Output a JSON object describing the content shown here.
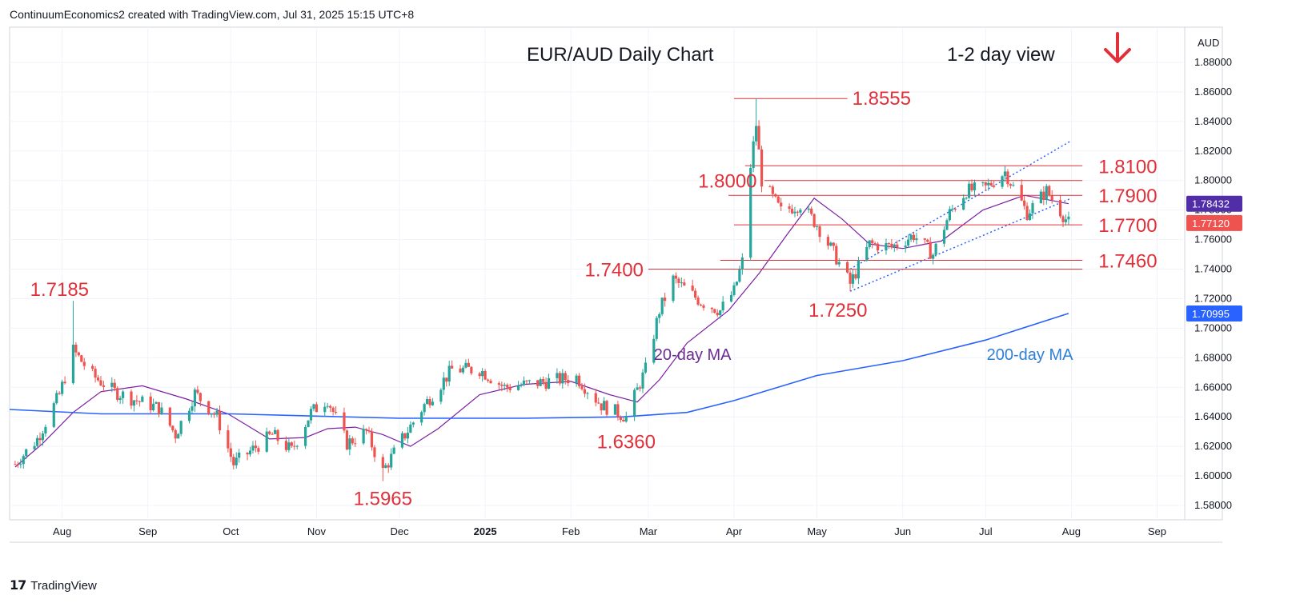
{
  "header": {
    "text": "ContinuumEconomics2 created with TradingView.com, Jul 31, 2025 15:15 UTC+8"
  },
  "footer": {
    "brand": "TradingView"
  },
  "chart_data": {
    "type": "candlestick",
    "title": "EUR/AUD Daily Chart",
    "subtitle": "1-2 day view",
    "outlook_arrow": "down-arrow-icon",
    "currency": "AUD",
    "ylim": [
      1.57,
      1.9
    ],
    "y_ticks": [
      "1.88000",
      "1.86000",
      "1.84000",
      "1.82000",
      "1.80000",
      "1.78000",
      "1.76000",
      "1.74000",
      "1.72000",
      "1.70000",
      "1.68000",
      "1.66000",
      "1.64000",
      "1.62000",
      "1.60000",
      "1.58000"
    ],
    "x_ticks": [
      {
        "label": "Aug",
        "x": "2024-08-01"
      },
      {
        "label": "Sep",
        "x": "2024-09-01"
      },
      {
        "label": "Oct",
        "x": "2024-10-01"
      },
      {
        "label": "Nov",
        "x": "2024-11-01"
      },
      {
        "label": "Dec",
        "x": "2024-12-01"
      },
      {
        "label": "2025",
        "x": "2025-01-01",
        "bold": true
      },
      {
        "label": "Feb",
        "x": "2025-02-01"
      },
      {
        "label": "Mar",
        "x": "2025-03-01"
      },
      {
        "label": "Apr",
        "x": "2025-04-01"
      },
      {
        "label": "May",
        "x": "2025-05-01"
      },
      {
        "label": "Jun",
        "x": "2025-06-01"
      },
      {
        "label": "Jul",
        "x": "2025-07-01"
      },
      {
        "label": "Aug",
        "x": "2025-08-01"
      },
      {
        "label": "Sep",
        "x": "2025-09-01"
      }
    ],
    "x_range": [
      "2024-07-13",
      "2025-09-11"
    ],
    "price_anchors": [
      [
        "2024-07-15",
        1.608
      ],
      [
        "2024-07-23",
        1.625
      ],
      [
        "2024-07-31",
        1.655
      ],
      [
        "2024-08-05",
        1.685
      ],
      [
        "2024-08-12",
        1.668
      ],
      [
        "2024-08-20",
        1.657
      ],
      [
        "2024-08-28",
        1.651
      ],
      [
        "2024-09-05",
        1.646
      ],
      [
        "2024-09-11",
        1.628
      ],
      [
        "2024-09-18",
        1.656
      ],
      [
        "2024-09-26",
        1.64
      ],
      [
        "2024-10-02",
        1.608
      ],
      [
        "2024-10-09",
        1.618
      ],
      [
        "2024-10-16",
        1.628
      ],
      [
        "2024-10-23",
        1.617
      ],
      [
        "2024-10-30",
        1.643
      ],
      [
        "2024-11-05",
        1.652
      ],
      [
        "2024-11-12",
        1.622
      ],
      [
        "2024-11-19",
        1.63
      ],
      [
        "2024-11-25",
        1.603
      ],
      [
        "2024-12-02",
        1.625
      ],
      [
        "2024-12-10",
        1.648
      ],
      [
        "2024-12-20",
        1.672
      ],
      [
        "2024-12-30",
        1.672
      ],
      [
        "2025-01-08",
        1.66
      ],
      [
        "2025-01-20",
        1.663
      ],
      [
        "2025-02-03",
        1.667
      ],
      [
        "2025-02-12",
        1.648
      ],
      [
        "2025-02-21",
        1.64
      ],
      [
        "2025-02-28",
        1.672
      ],
      [
        "2025-03-05",
        1.712
      ],
      [
        "2025-03-10",
        1.733
      ],
      [
        "2025-03-20",
        1.718
      ],
      [
        "2025-03-27",
        1.712
      ],
      [
        "2025-04-01",
        1.725
      ],
      [
        "2025-04-04",
        1.745
      ],
      [
        "2025-04-07",
        1.81
      ],
      [
        "2025-04-09",
        1.838
      ],
      [
        "2025-04-11",
        1.8
      ],
      [
        "2025-04-18",
        1.779
      ],
      [
        "2025-04-25",
        1.784
      ],
      [
        "2025-05-01",
        1.77
      ],
      [
        "2025-05-07",
        1.751
      ],
      [
        "2025-05-13",
        1.73
      ],
      [
        "2025-05-20",
        1.757
      ],
      [
        "2025-05-28",
        1.755
      ],
      [
        "2025-06-05",
        1.763
      ],
      [
        "2025-06-12",
        1.75
      ],
      [
        "2025-06-18",
        1.778
      ],
      [
        "2025-06-24",
        1.793
      ],
      [
        "2025-07-01",
        1.795
      ],
      [
        "2025-07-08",
        1.806
      ],
      [
        "2025-07-16",
        1.778
      ],
      [
        "2025-07-23",
        1.793
      ],
      [
        "2025-07-31",
        1.7712
      ]
    ],
    "key_candles": [
      {
        "x": "2024-08-05",
        "label": "1.7185",
        "price": 1.7185,
        "kind": "high"
      },
      {
        "x": "2024-11-25",
        "label": "1.5965",
        "price": 1.5965,
        "kind": "low"
      },
      {
        "x": "2025-02-21",
        "label": "1.6360",
        "price": 1.636,
        "kind": "low"
      },
      {
        "x": "2025-04-09",
        "label": "1.8555",
        "price": 1.8555,
        "kind": "high"
      },
      {
        "x": "2025-05-13",
        "label": "1.7250",
        "price": 1.725,
        "kind": "low"
      }
    ],
    "levels": [
      {
        "label": "1.8555",
        "price": 1.8555,
        "from": "2025-04-01",
        "to": "2025-05-12",
        "label_side": "right-of-line"
      },
      {
        "label": "1.8100",
        "price": 1.81,
        "from": "2025-04-05",
        "to": "2025-08-05",
        "label_side": "right"
      },
      {
        "label": "1.8000",
        "price": 1.8,
        "from": "2025-04-12",
        "to": "2025-08-05",
        "label_side": "left"
      },
      {
        "label": "1.7900",
        "price": 1.79,
        "from": "2025-03-30",
        "to": "2025-08-05",
        "label_side": "right"
      },
      {
        "label": "1.7700",
        "price": 1.77,
        "from": "2025-04-01",
        "to": "2025-08-05",
        "label_side": "right"
      },
      {
        "label": "1.7460",
        "price": 1.746,
        "from": "2025-03-27",
        "to": "2025-08-05",
        "label_side": "right"
      },
      {
        "label": "1.7400",
        "price": 1.74,
        "from": "2025-03-01",
        "to": "2025-08-05",
        "label_side": "left"
      }
    ],
    "text_labels": [
      {
        "text": "1.7185",
        "x": "2024-08-01",
        "price": 1.7185
      },
      {
        "text": "1.5965",
        "x": "2024-11-25",
        "price": 1.5965
      },
      {
        "text": "1.6360",
        "x": "2025-02-21",
        "price": 1.636
      },
      {
        "text": "1.8555",
        "x": "2025-05-12",
        "price": 1.8555
      },
      {
        "text": "1.8000",
        "x": "2025-04-11",
        "price": 1.8
      },
      {
        "text": "1.7400",
        "x": "2025-03-01",
        "price": 1.74
      },
      {
        "text": "1.7250",
        "x": "2025-05-13",
        "price": 1.725
      },
      {
        "text": "1.8100",
        "x": "2025-08-05",
        "price": 1.81
      },
      {
        "text": "1.7900",
        "x": "2025-08-05",
        "price": 1.79
      },
      {
        "text": "1.7700",
        "x": "2025-08-05",
        "price": 1.77
      },
      {
        "text": "1.7460",
        "x": "2025-08-05",
        "price": 1.746
      }
    ],
    "channel": {
      "upper": [
        [
          "2025-05-13",
          1.74
        ],
        [
          "2025-08-01",
          1.827
        ]
      ],
      "lower": [
        [
          "2025-05-13",
          1.725
        ],
        [
          "2025-08-01",
          1.788
        ]
      ]
    },
    "series": [
      {
        "name": "20-day MA",
        "color": "#7b1fa2",
        "points": [
          [
            "2024-07-15",
            1.606
          ],
          [
            "2024-07-25",
            1.622
          ],
          [
            "2024-08-05",
            1.643
          ],
          [
            "2024-08-15",
            1.657
          ],
          [
            "2024-08-30",
            1.661
          ],
          [
            "2024-09-15",
            1.652
          ],
          [
            "2024-09-30",
            1.642
          ],
          [
            "2024-10-15",
            1.625
          ],
          [
            "2024-10-28",
            1.626
          ],
          [
            "2024-11-05",
            1.632
          ],
          [
            "2024-11-15",
            1.633
          ],
          [
            "2024-11-25",
            1.628
          ],
          [
            "2024-12-05",
            1.62
          ],
          [
            "2024-12-15",
            1.632
          ],
          [
            "2024-12-30",
            1.655
          ],
          [
            "2025-01-15",
            1.662
          ],
          [
            "2025-02-01",
            1.664
          ],
          [
            "2025-02-15",
            1.655
          ],
          [
            "2025-02-25",
            1.65
          ],
          [
            "2025-03-05",
            1.665
          ],
          [
            "2025-03-15",
            1.69
          ],
          [
            "2025-03-30",
            1.712
          ],
          [
            "2025-04-10",
            1.737
          ],
          [
            "2025-04-20",
            1.763
          ],
          [
            "2025-04-30",
            1.788
          ],
          [
            "2025-05-10",
            1.774
          ],
          [
            "2025-05-20",
            1.757
          ],
          [
            "2025-06-01",
            1.754
          ],
          [
            "2025-06-15",
            1.759
          ],
          [
            "2025-06-30",
            1.78
          ],
          [
            "2025-07-15",
            1.79
          ],
          [
            "2025-07-31",
            1.7843
          ]
        ]
      },
      {
        "name": "200-day MA",
        "color": "#2962ff",
        "points": [
          [
            "2024-07-13",
            1.645
          ],
          [
            "2024-08-15",
            1.642
          ],
          [
            "2024-10-01",
            1.642
          ],
          [
            "2024-12-01",
            1.639
          ],
          [
            "2025-01-15",
            1.639
          ],
          [
            "2025-02-20",
            1.64
          ],
          [
            "2025-03-15",
            1.643
          ],
          [
            "2025-04-01",
            1.651
          ],
          [
            "2025-05-01",
            1.668
          ],
          [
            "2025-06-01",
            1.678
          ],
          [
            "2025-07-01",
            1.692
          ],
          [
            "2025-07-31",
            1.71
          ]
        ]
      }
    ],
    "ma_labels": [
      {
        "text": "20-day MA",
        "x": "2025-03-17",
        "price": 1.683,
        "color": "#6a2c91"
      },
      {
        "text": "200-day MA",
        "x": "2025-07-17",
        "price": 1.683,
        "color": "#2f7fd6"
      }
    ],
    "price_badges": [
      {
        "label": "1.78432",
        "price": 1.78432,
        "color": "#512da8"
      },
      {
        "label": "1.77120",
        "price": 1.7712,
        "color": "#ef5350"
      },
      {
        "label": "1.70995",
        "price": 1.70995,
        "color": "#2962ff"
      }
    ],
    "colors": {
      "up": "#26a69a",
      "down": "#ef5350",
      "level": "#e0303a",
      "channel": "#2962ff"
    }
  }
}
